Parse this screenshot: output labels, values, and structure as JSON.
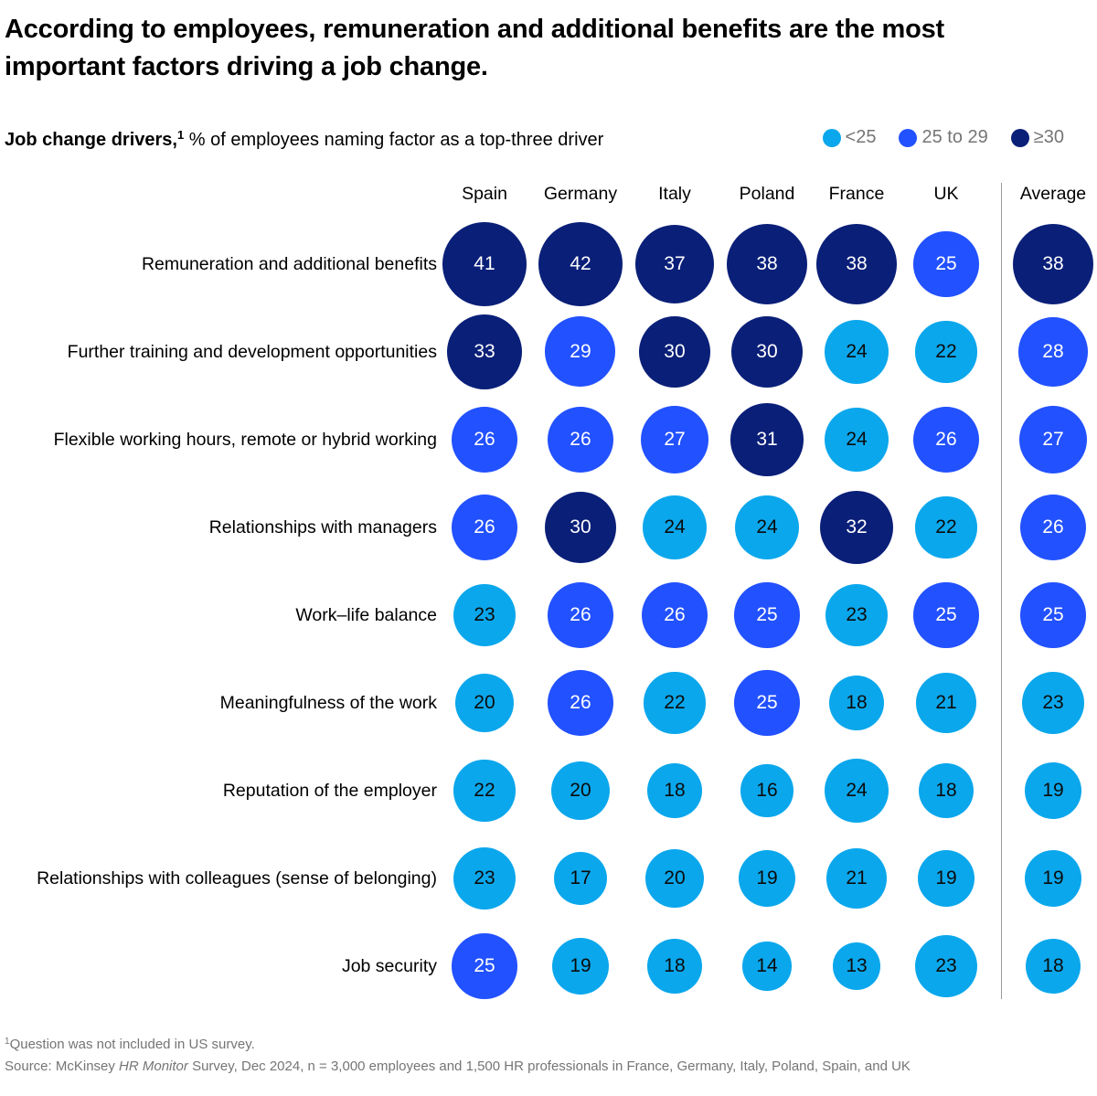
{
  "title": "According to employees, remuneration and additional benefits are the most important factors driving a job change.",
  "subtitle": {
    "bold": "Job change drivers,",
    "sup": "1",
    "rest": " % of employees naming factor as a top-three driver"
  },
  "chart_data": {
    "type": "heatmap",
    "mark": "sized-bubbles",
    "unit": "% of employees naming factor as a top-three driver",
    "legend_position": "top-right",
    "average_divider": true,
    "columns": [
      "Spain",
      "Germany",
      "Italy",
      "Poland",
      "France",
      "UK",
      "Average"
    ],
    "rows": [
      {
        "label": "Remuneration and additional benefits",
        "values": [
          41,
          42,
          37,
          38,
          38,
          25,
          38
        ]
      },
      {
        "label": "Further training and development opportunities",
        "values": [
          33,
          29,
          30,
          30,
          24,
          22,
          28
        ]
      },
      {
        "label": "Flexible working hours, remote or hybrid working",
        "values": [
          26,
          26,
          27,
          31,
          24,
          26,
          27
        ]
      },
      {
        "label": "Relationships with managers",
        "values": [
          26,
          30,
          24,
          24,
          32,
          22,
          26
        ]
      },
      {
        "label": "Work–life balance",
        "values": [
          23,
          26,
          26,
          25,
          23,
          25,
          25
        ]
      },
      {
        "label": "Meaningfulness of the work",
        "values": [
          20,
          26,
          22,
          25,
          18,
          21,
          23
        ]
      },
      {
        "label": "Reputation of the employer",
        "values": [
          22,
          20,
          18,
          16,
          24,
          18,
          19
        ]
      },
      {
        "label": "Relationships with colleagues (sense of belonging)",
        "values": [
          23,
          17,
          20,
          19,
          21,
          19,
          19
        ]
      },
      {
        "label": "Job security",
        "values": [
          25,
          19,
          18,
          14,
          13,
          23,
          18
        ]
      }
    ],
    "bins": [
      {
        "label": "<25",
        "condition": "value < 25",
        "color": "#0BA7EC",
        "text_color": "#0B0B0B"
      },
      {
        "label": "25 to 29",
        "condition": "25 <= value <= 29",
        "color": "#2251FF",
        "text_color": "#FFFFFF"
      },
      {
        "label": "≥30",
        "condition": "value >= 30",
        "color": "#0A1F78",
        "text_color": "#FFFFFF"
      }
    ]
  },
  "footnotes": {
    "note_sup": "1",
    "note": "Question was not included in US survey.",
    "source_prefix": " Source: McKinsey ",
    "source_italic": "HR Monitor",
    "source_suffix": " Survey, Dec 2024, n = 3,000 employees and 1,500 HR professionals in France, Germany, Italy, Poland, Spain, and UK"
  }
}
